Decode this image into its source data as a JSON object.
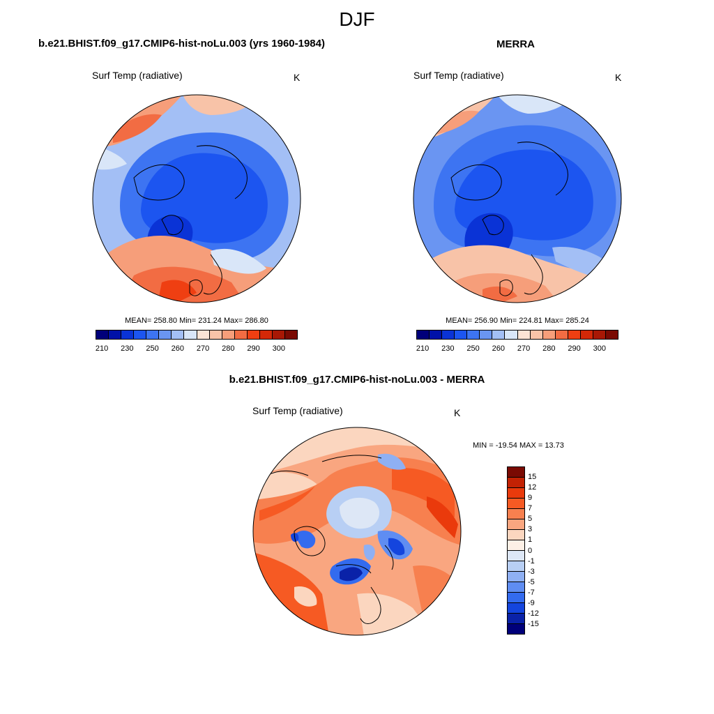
{
  "season": "DJF",
  "variable": "Surf Temp (radiative)",
  "units": "K",
  "panels": [
    {
      "id": "model",
      "title": "b.e21.BHIST.f09_g17.CMIP6-hist-noLu.003 (yrs 1960-1984)",
      "stats": "MEAN= 258.80  Min= 231.24  Max= 286.80"
    },
    {
      "id": "obs",
      "title": "MERRA",
      "stats": "MEAN= 256.90  Min= 224.81  Max= 285.24"
    },
    {
      "id": "diff",
      "title": "b.e21.BHIST.f09_g17.CMIP6-hist-noLu.003 - MERRA",
      "stats": "MIN = -19.54 MAX =  13.73"
    }
  ],
  "abs_colorbar": {
    "tick_labels": [
      "210",
      "230",
      "250",
      "260",
      "270",
      "280",
      "290",
      "300"
    ],
    "colors": [
      "#00007a",
      "#0011a8",
      "#0a33d6",
      "#1c55f0",
      "#3d74f2",
      "#6a95f2",
      "#a3bff5",
      "#d9e6f8",
      "#fbe4d5",
      "#f8c3a8",
      "#f69e7a",
      "#f26c43",
      "#ef3f12",
      "#d42808",
      "#a81805",
      "#7a0a03"
    ]
  },
  "diff_colorbar": {
    "tick_labels": [
      "15",
      "12",
      "9",
      "7",
      "5",
      "3",
      "1",
      "0",
      "-1",
      "-3",
      "-5",
      "-7",
      "-9",
      "-12",
      "-15"
    ],
    "colors": [
      "#7a0a03",
      "#c32204",
      "#ea3a0c",
      "#f65a23",
      "#f7804f",
      "#f9a680",
      "#fbd6bf",
      "#fdf0e6",
      "#dde7f6",
      "#b8cff4",
      "#8fb0f3",
      "#5f8df2",
      "#336bef",
      "#1445de",
      "#0a22a8",
      "#00007a"
    ]
  }
}
